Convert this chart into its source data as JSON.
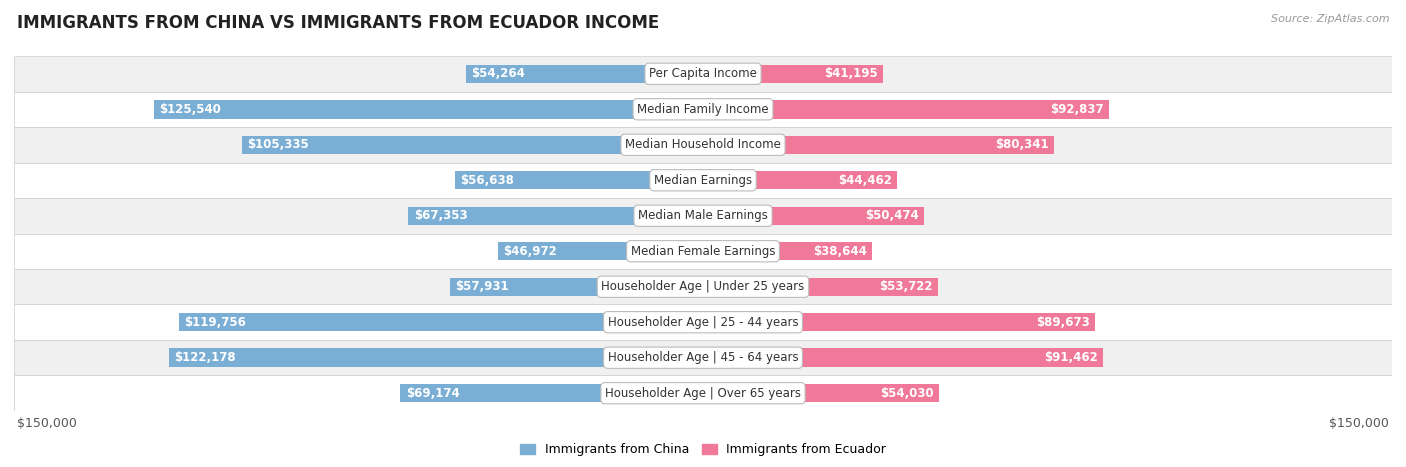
{
  "title": "IMMIGRANTS FROM CHINA VS IMMIGRANTS FROM ECUADOR INCOME",
  "source": "Source: ZipAtlas.com",
  "categories": [
    "Per Capita Income",
    "Median Family Income",
    "Median Household Income",
    "Median Earnings",
    "Median Male Earnings",
    "Median Female Earnings",
    "Householder Age | Under 25 years",
    "Householder Age | 25 - 44 years",
    "Householder Age | 45 - 64 years",
    "Householder Age | Over 65 years"
  ],
  "china_values": [
    54264,
    125540,
    105335,
    56638,
    67353,
    46972,
    57931,
    119756,
    122178,
    69174
  ],
  "ecuador_values": [
    41195,
    92837,
    80341,
    44462,
    50474,
    38644,
    53722,
    89673,
    91462,
    54030
  ],
  "china_labels": [
    "$54,264",
    "$125,540",
    "$105,335",
    "$56,638",
    "$67,353",
    "$46,972",
    "$57,931",
    "$119,756",
    "$122,178",
    "$69,174"
  ],
  "ecuador_labels": [
    "$41,195",
    "$92,837",
    "$80,341",
    "$44,462",
    "$50,474",
    "$38,644",
    "$53,722",
    "$89,673",
    "$91,462",
    "$54,030"
  ],
  "china_color": "#7aaed4",
  "ecuador_color": "#f07898",
  "max_value": 150000,
  "bar_height": 0.52,
  "background_color": "#ffffff",
  "row_bg_odd": "#f0f0f0",
  "row_bg_even": "#ffffff",
  "row_border_color": "#cccccc",
  "legend_china": "Immigrants from China",
  "legend_ecuador": "Immigrants from Ecuador",
  "inside_label_threshold": 30000,
  "label_fontsize": 8.5,
  "cat_fontsize": 8.5,
  "title_fontsize": 12,
  "source_fontsize": 8
}
